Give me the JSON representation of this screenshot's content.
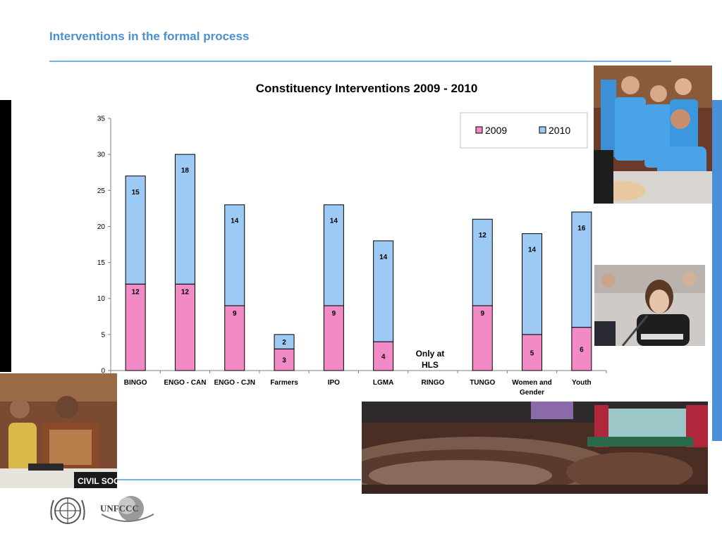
{
  "page": {
    "title": "Interventions in the formal process"
  },
  "chart_data": {
    "type": "bar",
    "stacked": true,
    "title": "Constituency Interventions 2009 - 2010",
    "categories": [
      "BINGO",
      "ENGO - CAN",
      "ENGO - CJN",
      "Farmers",
      "IPO",
      "LGMA",
      "RINGO",
      "TUNGO",
      "Women and Gender",
      "Youth"
    ],
    "series": [
      {
        "name": "2009",
        "color": "#f28ac6",
        "values": [
          12,
          12,
          9,
          3,
          9,
          4,
          null,
          9,
          5,
          6
        ]
      },
      {
        "name": "2010",
        "color": "#9dc9f5",
        "values": [
          15,
          18,
          14,
          2,
          14,
          14,
          null,
          12,
          14,
          16
        ]
      }
    ],
    "ylim": [
      0,
      35
    ],
    "yticks": [
      0,
      5,
      10,
      15,
      20,
      25,
      30,
      35
    ],
    "xlabel": "",
    "ylabel": "",
    "grid": false,
    "legend": "top-right",
    "annotations": [
      {
        "category": "RINGO",
        "lines": [
          "Only at",
          "HLS"
        ]
      }
    ]
  },
  "logos": {
    "unfccc_text": "UNFCCC"
  },
  "icons": {
    "photo_top_right": "youth-delegates-photo",
    "photo_mid_right": "negotiator-speaking-photo",
    "photo_bottom_left": "civil-society-delegate-photo",
    "photo_bottom_right": "plenary-hall-photo",
    "un_logo": "un-emblem-icon"
  },
  "colors": {
    "accent": "#4a90d0",
    "rule": "#7ab2e2",
    "bar2009": "#f28ac6",
    "bar2010": "#9dc9f5"
  }
}
